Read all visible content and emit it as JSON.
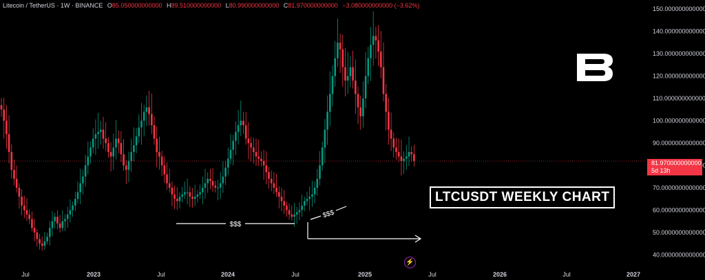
{
  "header": {
    "symbol": "Litecoin / TetherUS · 1W · BINANCE",
    "o_label": "O",
    "o_value": "85.050000000000",
    "h_label": "H",
    "h_value": "89.510000000000",
    "l_label": "L",
    "l_value": "80.990000000000",
    "c_label": "C",
    "c_value": "81.970000000000",
    "change": "−3.080000000000 (−3.62%)"
  },
  "price_label": {
    "value": "81.970000000000",
    "countdown": "5d 13h"
  },
  "title_box": "LTCUSDT WEEKLY CHART",
  "annotations": [
    "$$$",
    "$$$"
  ],
  "icons": {
    "logo": "brand-b-logo",
    "alert": "lightning-icon"
  },
  "colors": {
    "up": "#089981",
    "down": "#f23645",
    "background": "#000000",
    "text": "#d1d4dc"
  },
  "chart_data": {
    "type": "candlestick",
    "title": "",
    "xlabel": "",
    "ylabel": "",
    "ylim": [
      37,
      151
    ],
    "y_ticks": [
      150,
      140,
      130,
      120,
      110,
      100,
      90,
      80,
      70,
      60,
      50,
      40
    ],
    "y_tick_labels": [
      "150.0000000000000",
      "140.0000000000000",
      "130.0000000000000",
      "120.0000000000000",
      "110.0000000000000",
      "100.0000000000000",
      "90.0000000000000",
      "80.0000000000000",
      "70.0000000000000",
      "60.0000000000000",
      "50.0000000000000",
      "40.0000000000000"
    ],
    "x_tick_labels": [
      "Jul",
      "2023",
      "Jul",
      "2024",
      "Jul",
      "2025",
      "Jul",
      "2026",
      "Jul",
      "2027"
    ],
    "x_ticks_weeks": [
      3,
      29,
      55,
      81,
      107,
      133,
      159,
      185,
      211,
      237
    ],
    "grid": false,
    "last_close": 81.97,
    "closes": [
      105,
      100,
      94,
      86,
      78,
      74,
      70,
      66,
      62,
      60,
      58,
      56,
      52,
      50,
      47,
      45,
      44,
      46,
      48,
      52,
      55,
      57,
      54,
      52,
      55,
      56,
      58,
      60,
      62,
      65,
      68,
      72,
      75,
      80,
      84,
      88,
      92,
      94,
      95,
      96,
      92,
      90,
      86,
      84,
      88,
      92,
      90,
      85,
      80,
      78,
      82,
      86,
      89,
      93,
      97,
      100,
      104,
      106,
      103,
      98,
      92,
      86,
      84,
      80,
      76,
      72,
      70,
      67,
      65,
      64,
      66,
      67,
      68,
      68,
      66,
      65,
      66,
      67,
      68,
      70,
      72,
      74,
      73,
      71,
      70,
      70,
      72,
      75,
      79,
      83,
      87,
      91,
      95,
      98,
      100,
      98,
      92,
      90,
      88,
      86,
      84,
      83,
      82,
      80,
      77,
      74,
      72,
      70,
      68,
      66,
      64,
      62,
      60,
      58,
      57,
      58,
      59,
      60,
      62,
      64,
      65,
      66,
      67,
      70,
      74,
      80,
      88,
      96,
      104,
      112,
      120,
      128,
      135,
      132,
      124,
      118,
      120,
      124,
      118,
      112,
      106,
      102,
      110,
      120,
      128,
      134,
      138,
      136,
      131,
      124,
      112,
      104,
      96,
      92,
      88,
      86,
      84,
      82,
      83,
      84,
      86,
      85,
      82
    ]
  }
}
